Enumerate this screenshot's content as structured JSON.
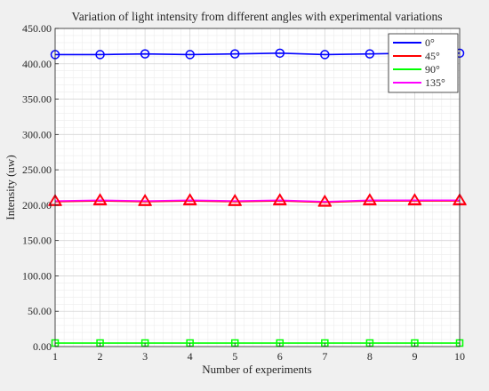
{
  "chart_data": {
    "type": "line",
    "title": "Variation of light intensity from different angles with experimental variations",
    "xlabel": "Number of experiments",
    "ylabel": "Intensity (uw)",
    "xlim": [
      1,
      10
    ],
    "ylim": [
      0,
      450
    ],
    "x_ticks": [
      1,
      2,
      3,
      4,
      5,
      6,
      7,
      8,
      9,
      10
    ],
    "y_ticks": [
      "0.00",
      "50.00",
      "100.00",
      "150.00",
      "200.00",
      "250.00",
      "300.00",
      "350.00",
      "400.00",
      "450.00"
    ],
    "grid": true,
    "minor_grid": true,
    "legend_position": "top-right",
    "x": [
      1,
      2,
      3,
      4,
      5,
      6,
      7,
      8,
      9,
      10
    ],
    "series": [
      {
        "name": "0°",
        "color": "#0000ff",
        "marker": "circle",
        "values": [
          413,
          413,
          414,
          413,
          414,
          415,
          413,
          414,
          415,
          415
        ]
      },
      {
        "name": "45°",
        "color": "#ff0000",
        "marker": "triangle",
        "values": [
          205,
          206,
          205,
          206,
          205,
          206,
          204,
          206,
          206,
          206
        ]
      },
      {
        "name": "90°",
        "color": "#00ff00",
        "marker": "square",
        "values": [
          5,
          5,
          5,
          5,
          5,
          5,
          5,
          5,
          5,
          5
        ]
      },
      {
        "name": "135°",
        "color": "#ff00ff",
        "marker": "triangle",
        "values": [
          206,
          207,
          206,
          207,
          206,
          207,
          205,
          207,
          207,
          207
        ]
      }
    ]
  }
}
